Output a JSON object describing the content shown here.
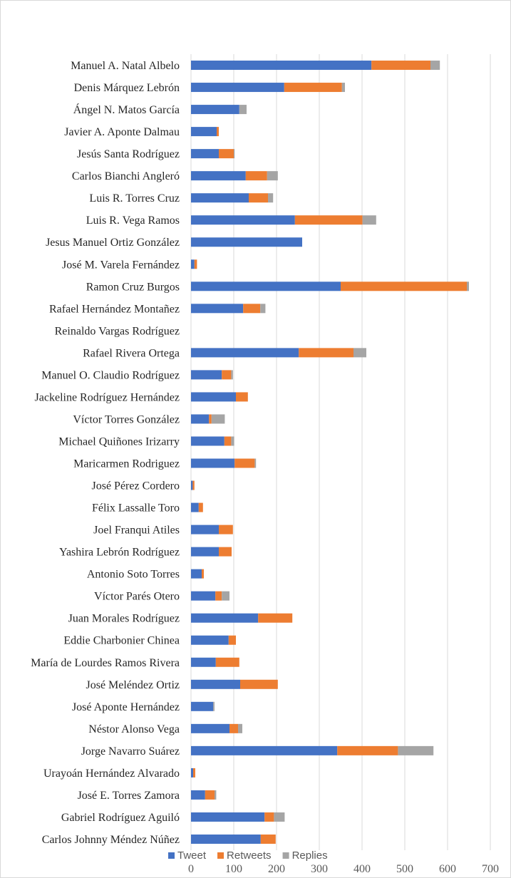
{
  "chart_data": {
    "type": "bar",
    "orientation": "horizontal",
    "stacked": true,
    "categories": [
      "Manuel A. Natal Albelo",
      "Denis Márquez Lebrón",
      "Ángel N. Matos García",
      "Javier A. Aponte Dalmau",
      "Jesús Santa Rodríguez",
      "Carlos Bianchi Angleró",
      "Luis R. Torres Cruz",
      "Luis R. Vega Ramos",
      "Jesus Manuel Ortiz González",
      "José M. Varela Fernández",
      "Ramon Cruz Burgos",
      "Rafael Hernández Montañez",
      "Reinaldo Vargas Rodríguez",
      "Rafael Rivera Ortega",
      "Manuel O. Claudio Rodríguez",
      "Jackeline Rodríguez Hernández",
      "Víctor Torres González",
      "Michael Quiñones Irizarry",
      "Maricarmen Rodriguez",
      "José Pérez Cordero",
      "Félix Lassalle Toro",
      "Joel Franqui Atiles",
      "Yashira Lebrón Rodríguez",
      "Antonio Soto Torres",
      "Víctor Parés Otero",
      "Juan Morales Rodríguez",
      "Eddie Charbonier Chinea",
      "María de Lourdes Ramos Rivera",
      "José Meléndez Ortiz",
      "José Aponte Hernández",
      "Néstor Alonso Vega",
      "Jorge Navarro Suárez",
      "Urayoán Hernández Alvarado",
      "José E. Torres Zamora",
      "Gabriel Rodríguez Aguiló",
      "Carlos Johnny Méndez Núñez"
    ],
    "series": [
      {
        "name": "Tweet",
        "color": "#4472c4",
        "values": [
          422,
          218,
          113,
          60,
          65,
          128,
          135,
          243,
          260,
          8,
          350,
          122,
          0,
          252,
          72,
          105,
          42,
          78,
          102,
          4,
          18,
          65,
          65,
          25,
          57,
          157,
          88,
          58,
          115,
          52,
          90,
          342,
          5,
          33,
          172,
          163
        ]
      },
      {
        "name": "Retweets",
        "color": "#ed7d31",
        "values": [
          138,
          135,
          0,
          5,
          35,
          50,
          45,
          158,
          0,
          6,
          295,
          40,
          0,
          128,
          22,
          28,
          6,
          16,
          47,
          4,
          10,
          33,
          30,
          5,
          15,
          80,
          17,
          55,
          88,
          0,
          20,
          142,
          5,
          22,
          22,
          35
        ]
      },
      {
        "name": "Replies",
        "color": "#a5a5a5",
        "values": [
          22,
          7,
          17,
          0,
          2,
          25,
          12,
          32,
          0,
          0,
          5,
          12,
          0,
          30,
          4,
          0,
          31,
          7,
          3,
          0,
          0,
          0,
          0,
          0,
          18,
          0,
          0,
          0,
          0,
          3,
          10,
          83,
          0,
          4,
          25,
          0
        ]
      }
    ],
    "xlim": [
      0,
      700
    ],
    "x_ticks": [
      "0",
      "100",
      "200",
      "300",
      "400",
      "500",
      "600",
      "700"
    ],
    "grid": true,
    "legend_position": "bottom"
  }
}
